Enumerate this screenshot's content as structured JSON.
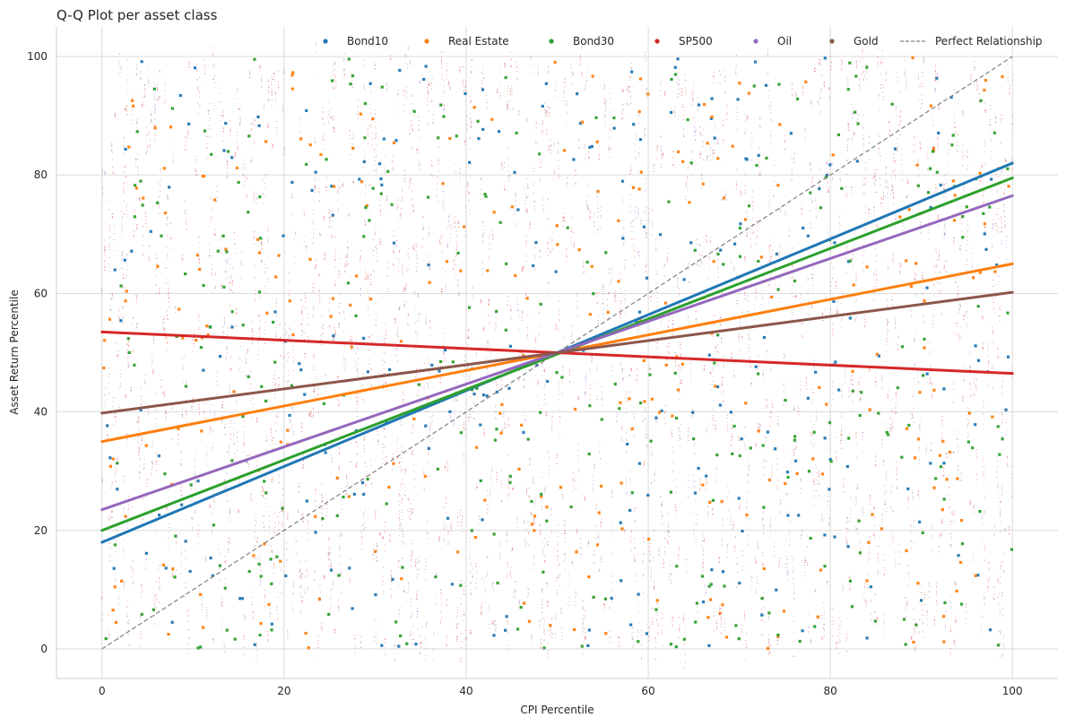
{
  "chart_data": {
    "type": "scatter",
    "title": "Q-Q Plot per asset class",
    "xlabel": "CPI Percentile",
    "ylabel": "Asset Return Percentile",
    "xlim": [
      -5,
      105
    ],
    "ylim": [
      -5,
      105
    ],
    "x_ticks": [
      0,
      20,
      40,
      60,
      80,
      100
    ],
    "y_ticks": [
      0,
      20,
      40,
      60,
      80,
      100
    ],
    "grid": true,
    "legend_position": "top-right",
    "series": [
      {
        "name": "Bond10",
        "color": "#1f77b4",
        "fit_start": [
          0,
          18
        ],
        "fit_end": [
          100,
          82
        ]
      },
      {
        "name": "Real Estate",
        "color": "#ff7f0e",
        "fit_start": [
          0,
          35
        ],
        "fit_end": [
          100,
          65
        ]
      },
      {
        "name": "Bond30",
        "color": "#2ca02c",
        "fit_start": [
          0,
          20
        ],
        "fit_end": [
          100,
          79.5
        ]
      },
      {
        "name": "SP500",
        "color": "#d62728",
        "fit_start": [
          0,
          53.5
        ],
        "fit_end": [
          100,
          46.5
        ]
      },
      {
        "name": "Oil",
        "color": "#9467bd",
        "fit_start": [
          0,
          23.5
        ],
        "fit_end": [
          100,
          76.5
        ]
      },
      {
        "name": "Gold",
        "color": "#8c564b",
        "fit_start": [
          0,
          39.8
        ],
        "fit_end": [
          100,
          60.2
        ]
      }
    ],
    "reference_line": {
      "name": "Perfect Relationship",
      "color": "#7f7f7f",
      "style": "dashed",
      "start": [
        0,
        0
      ],
      "end": [
        100,
        100
      ]
    }
  }
}
